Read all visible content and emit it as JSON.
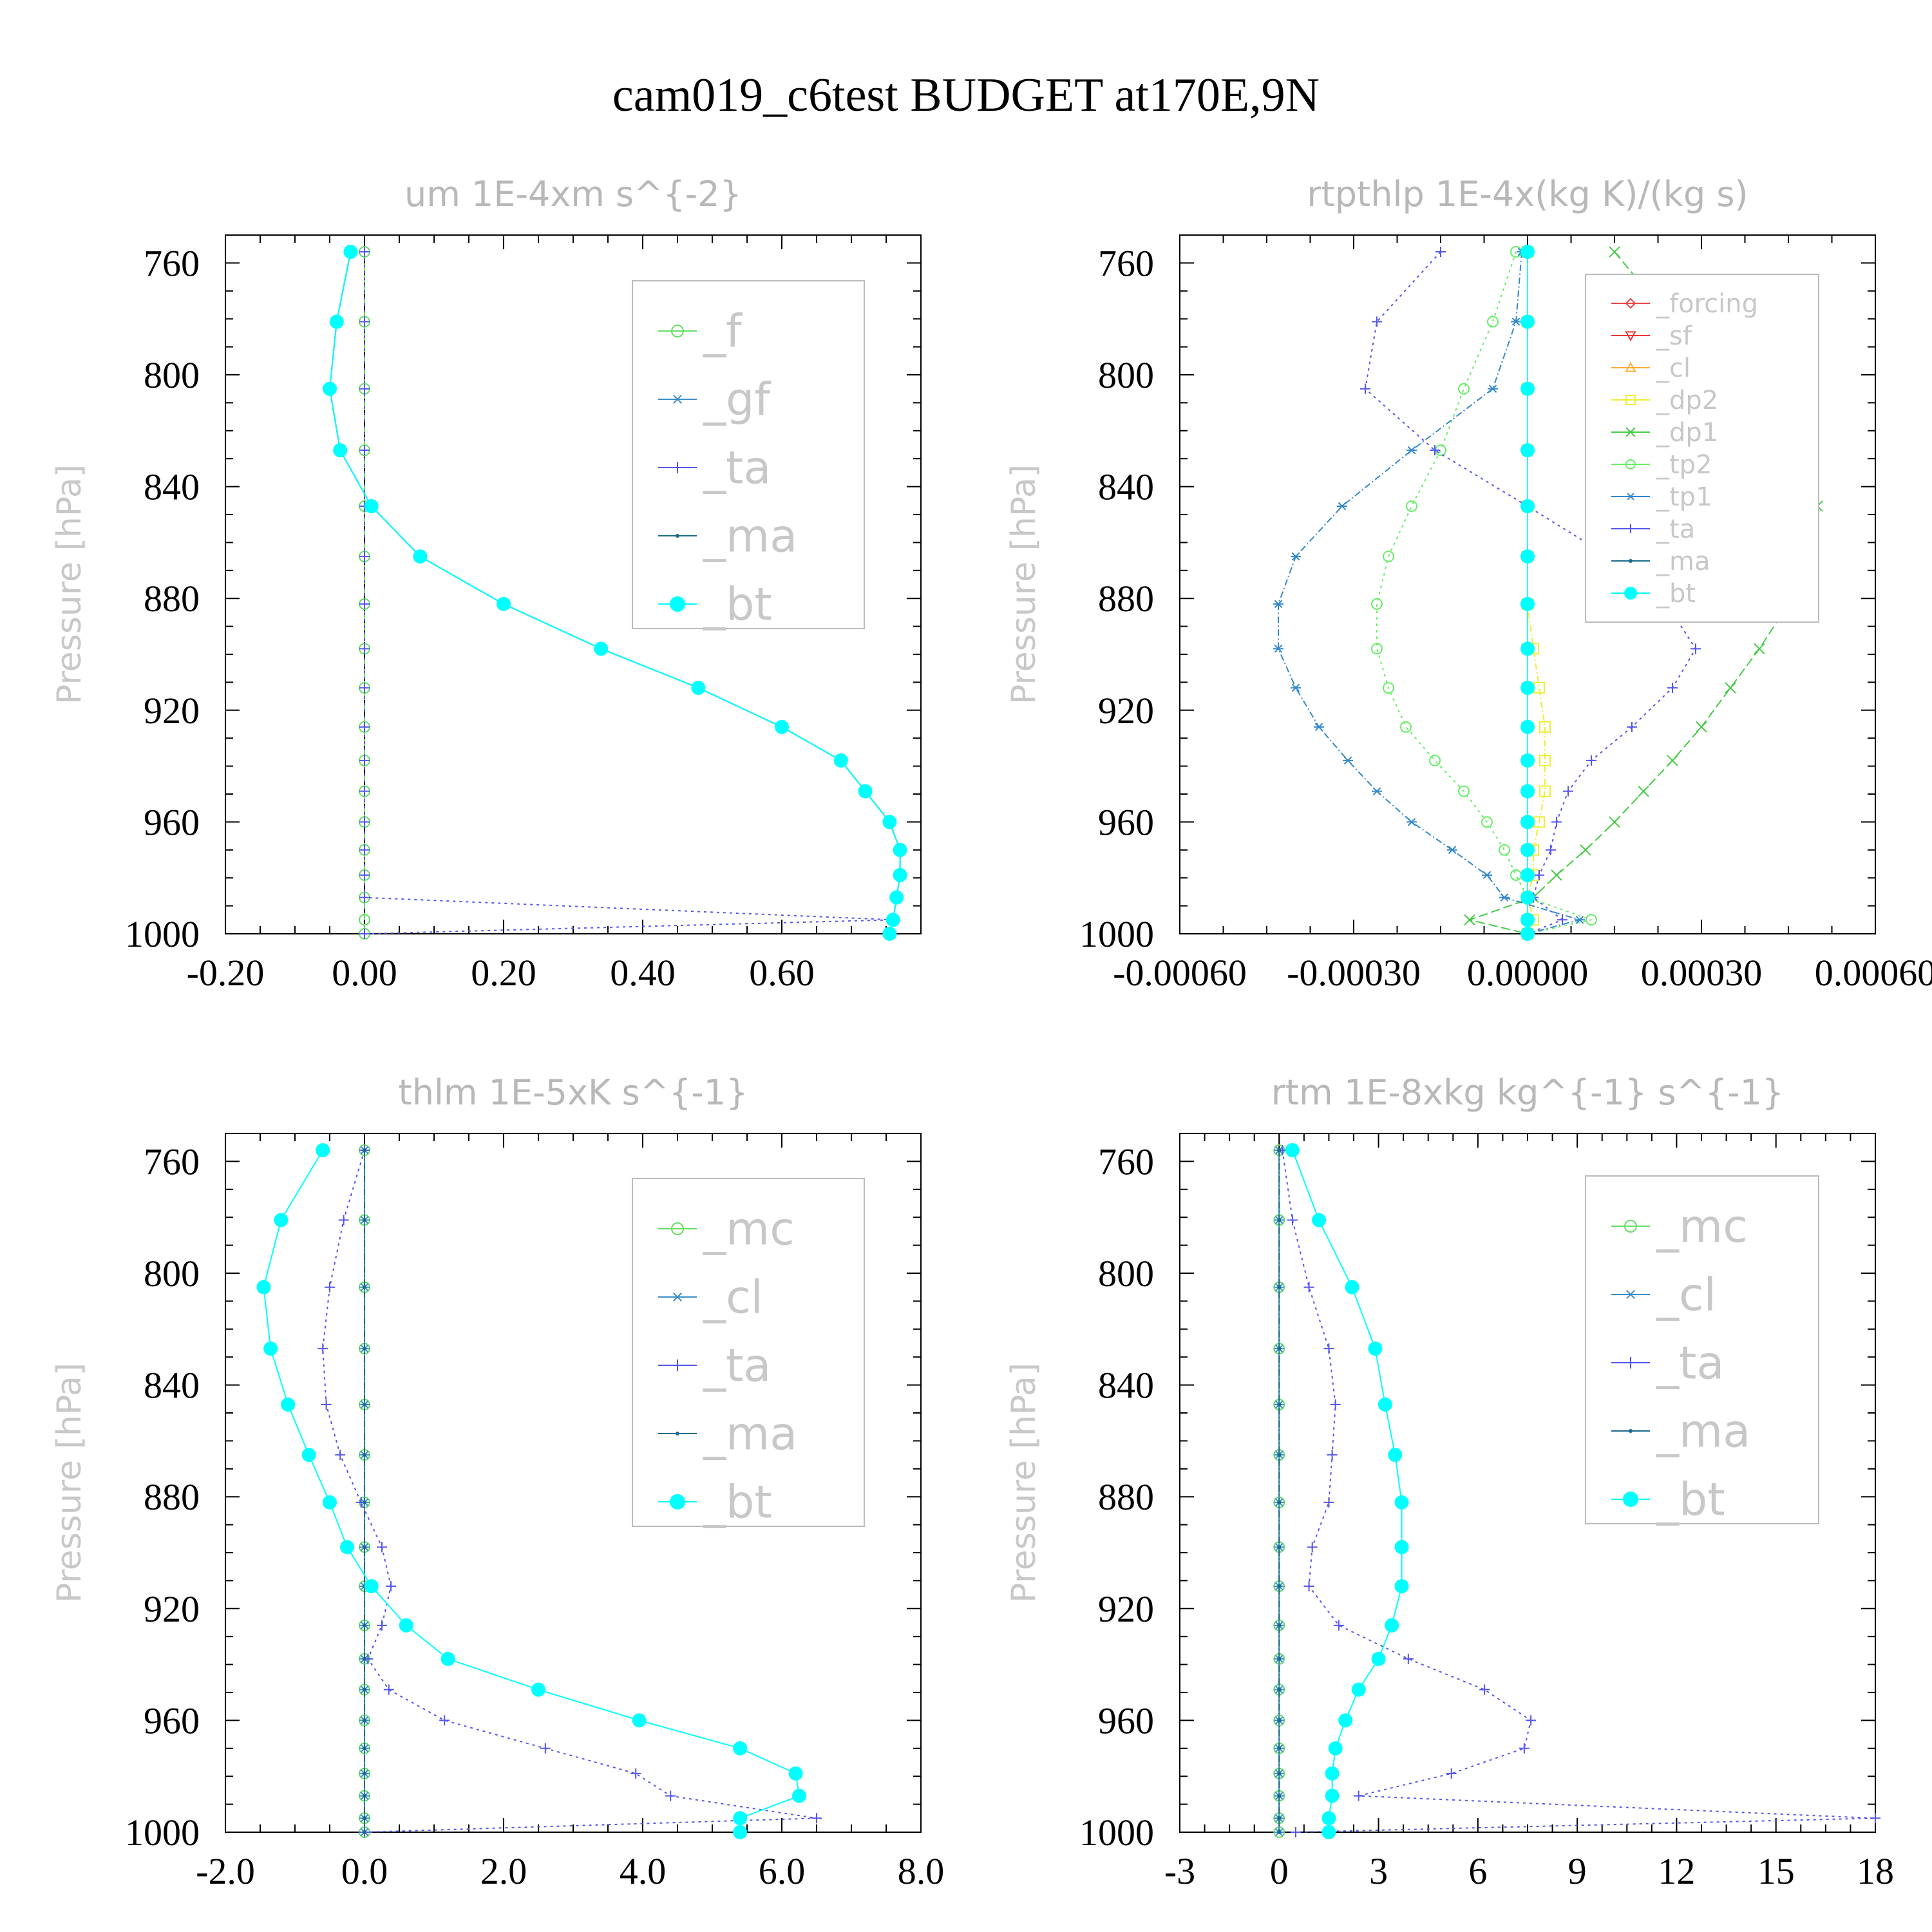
{
  "figure": {
    "title": "cam019_c6test  BUDGET at170E,9N"
  },
  "colors": {
    "f": "#66dd66",
    "gf": "#3a8fc8",
    "ta": "#5555ee",
    "ma": "#1a6a8a",
    "bt": "#00ffff",
    "forcing": "#ee4444",
    "sf": "#ee3333",
    "cl_rt": "#ffaa33",
    "dp2": "#eeee33",
    "dp1": "#44cc44",
    "tp2": "#66ee66",
    "tp1": "#3388cc",
    "mc": "#66dd66",
    "cl": "#3a8fc8"
  },
  "chart_data": [
    {
      "id": "um",
      "type": "line",
      "title": "um   1E-4xm s^{-2}",
      "ylabel": "Pressure [hPa]",
      "xlim": [
        -0.2,
        0.8
      ],
      "ylim": [
        1000,
        750
      ],
      "xticks": [
        "-0.20",
        "0.00",
        "0.20",
        "0.40",
        "0.60"
      ],
      "xtick_values": [
        -0.2,
        0.0,
        0.2,
        0.4,
        0.6
      ],
      "yticks": [
        "760",
        "800",
        "840",
        "880",
        "920",
        "960",
        "1000"
      ],
      "legend": [
        "_f",
        "_gf",
        "_ta",
        "_ma",
        "_bt"
      ],
      "p": [
        756,
        781,
        805,
        827,
        847,
        865,
        882,
        898,
        912,
        926,
        938,
        949,
        960,
        970,
        979,
        987,
        995,
        1000
      ],
      "series": [
        {
          "name": "_f",
          "color_key": "f",
          "dash": "12,6",
          "marker": "circle",
          "values": [
            0,
            0,
            0,
            0,
            0,
            0,
            0,
            0,
            0,
            0,
            0,
            0,
            0,
            0,
            0,
            0,
            0,
            0
          ]
        },
        {
          "name": "_gf",
          "color_key": "gf",
          "dash": "",
          "marker": "star",
          "values": [
            -0.02,
            -0.04,
            -0.05,
            -0.035,
            0.01,
            0.08,
            0.2,
            0.34,
            0.48,
            0.6,
            0.685,
            0.72,
            0.755,
            0.77,
            0.77,
            0.765,
            0.76,
            0.755
          ]
        },
        {
          "name": "_ta",
          "color_key": "ta",
          "dash": "4,6",
          "marker": "plus",
          "values": [
            0,
            0,
            0,
            0,
            0,
            0,
            0,
            0,
            0,
            0,
            0,
            0,
            0,
            0,
            0,
            0,
            0.76,
            0
          ]
        },
        {
          "name": "_ma",
          "color_key": "ma",
          "dash": "10,4,2,4",
          "marker": "dot",
          "values": [
            -0.02,
            -0.04,
            -0.05,
            -0.035,
            0.01,
            0.08,
            0.2,
            0.34,
            0.48,
            0.6,
            0.685,
            0.72,
            0.755,
            0.77,
            0.77,
            0.765,
            0.76,
            0.755
          ]
        },
        {
          "name": "_bt",
          "color_key": "bt",
          "dash": "",
          "marker": "filled",
          "values": [
            -0.02,
            -0.04,
            -0.05,
            -0.035,
            0.01,
            0.08,
            0.2,
            0.34,
            0.48,
            0.6,
            0.685,
            0.72,
            0.755,
            0.77,
            0.77,
            0.765,
            0.76,
            0.755
          ]
        }
      ]
    },
    {
      "id": "rtpthlp",
      "type": "line",
      "title": "rtpthlp   1E-4x(kg K)/(kg s)",
      "ylabel": "Pressure [hPa]",
      "xlim": [
        -0.0006,
        0.0006
      ],
      "ylim": [
        1000,
        750
      ],
      "xticks": [
        "-0.00060",
        "-0.00030",
        "0.00000",
        "0.00030",
        "0.00060"
      ],
      "xtick_values": [
        -0.0006,
        -0.0003,
        0.0,
        0.0003,
        0.0006
      ],
      "yticks": [
        "760",
        "800",
        "840",
        "880",
        "920",
        "960",
        "1000"
      ],
      "legend": [
        "_forcing",
        "_sf",
        "_cl",
        "_dp2",
        "_dp1",
        "_tp2",
        "_tp1",
        "_ta",
        "_ma",
        "_bt"
      ],
      "p": [
        756,
        781,
        805,
        827,
        847,
        865,
        882,
        898,
        912,
        926,
        938,
        949,
        960,
        970,
        979,
        987,
        995,
        1000
      ],
      "series": [
        {
          "name": "_forcing",
          "color_key": "forcing",
          "dash": "",
          "marker": "diamond",
          "values": [
            0,
            0,
            0,
            0,
            0,
            0,
            0,
            0,
            0,
            0,
            0,
            0,
            0,
            0,
            0,
            0,
            0,
            0
          ]
        },
        {
          "name": "_sf",
          "color_key": "sf",
          "dash": "10,5",
          "marker": "tri-down",
          "values": [
            0,
            0,
            0,
            0,
            0,
            0,
            0,
            0,
            0,
            0,
            0,
            0,
            0,
            0,
            0,
            0,
            0,
            0
          ]
        },
        {
          "name": "_cl",
          "color_key": "cl_rt",
          "dash": "3,5",
          "marker": "tri-up",
          "values": [
            0,
            0,
            0,
            0,
            0,
            0,
            0,
            0,
            0,
            0,
            0,
            0,
            0,
            0,
            0,
            0,
            0,
            0
          ]
        },
        {
          "name": "_dp2",
          "color_key": "dp2",
          "dash": "10,4,2,4",
          "marker": "square",
          "values": [
            0,
            0,
            0,
            0,
            0,
            0,
            0,
            1e-05,
            2e-05,
            3e-05,
            3e-05,
            3e-05,
            2e-05,
            1e-05,
            1e-05,
            0,
            1e-05,
            0
          ]
        },
        {
          "name": "_dp1",
          "color_key": "dp1",
          "dash": "14,6",
          "marker": "x",
          "values": [
            0.00015,
            0.00025,
            0.0004,
            0.00048,
            0.0005,
            0.00048,
            0.00045,
            0.0004,
            0.00035,
            0.0003,
            0.00025,
            0.0002,
            0.00015,
            0.0001,
            5e-05,
            1e-05,
            -0.0001,
            0
          ]
        },
        {
          "name": "_tp2",
          "color_key": "tp2",
          "dash": "4,6",
          "marker": "circle",
          "values": [
            -2e-05,
            -6e-05,
            -0.00011,
            -0.00015,
            -0.0002,
            -0.00024,
            -0.00026,
            -0.00026,
            -0.00024,
            -0.00021,
            -0.00016,
            -0.00011,
            -7e-05,
            -4e-05,
            -2e-05,
            0,
            0.00011,
            0
          ]
        },
        {
          "name": "_tp1",
          "color_key": "tp1",
          "dash": "10,4,2,4",
          "marker": "star",
          "values": [
            -1e-05,
            -2e-05,
            -6e-05,
            -0.0002,
            -0.00032,
            -0.0004,
            -0.00043,
            -0.00043,
            -0.0004,
            -0.00036,
            -0.00031,
            -0.00026,
            -0.0002,
            -0.00013,
            -7e-05,
            -4e-05,
            9e-05,
            0
          ]
        },
        {
          "name": "_ta",
          "color_key": "ta",
          "dash": "4,6",
          "marker": "plus",
          "values": [
            -0.00015,
            -0.00026,
            -0.00028,
            -0.00016,
            0,
            0.00014,
            0.00024,
            0.00029,
            0.00025,
            0.00018,
            0.00011,
            7e-05,
            5e-05,
            4e-05,
            2e-05,
            1e-05,
            6e-05,
            0
          ]
        },
        {
          "name": "_ma",
          "color_key": "ma",
          "dash": "10,4,2,4",
          "marker": "dot",
          "values": [
            0,
            0,
            0,
            0,
            0,
            0,
            0,
            0,
            0,
            0,
            0,
            0,
            0,
            0,
            0,
            0,
            0,
            0
          ]
        },
        {
          "name": "_bt",
          "color_key": "bt",
          "dash": "",
          "marker": "filled",
          "values": [
            0,
            0,
            0,
            0,
            0,
            0,
            0,
            0,
            0,
            0,
            0,
            0,
            0,
            0,
            0,
            0,
            0,
            0
          ]
        }
      ]
    },
    {
      "id": "thlm",
      "type": "line",
      "title": "thlm   1E-5xK s^{-1}",
      "ylabel": "Pressure [hPa]",
      "xlim": [
        -2.0,
        8.0
      ],
      "ylim": [
        1000,
        750
      ],
      "xticks": [
        "-2.0",
        "0.0",
        "2.0",
        "4.0",
        "6.0",
        "8.0"
      ],
      "xtick_values": [
        -2.0,
        0.0,
        2.0,
        4.0,
        6.0,
        8.0
      ],
      "yticks": [
        "760",
        "800",
        "840",
        "880",
        "920",
        "960",
        "1000"
      ],
      "legend": [
        "_mc",
        "_cl",
        "_ta",
        "_ma",
        "_bt"
      ],
      "p": [
        756,
        781,
        805,
        827,
        847,
        865,
        882,
        898,
        912,
        926,
        938,
        949,
        960,
        970,
        979,
        987,
        995,
        1000
      ],
      "series": [
        {
          "name": "_mc",
          "color_key": "mc",
          "dash": "12,6",
          "marker": "circle",
          "values": [
            0,
            0,
            0,
            0,
            0,
            0,
            0,
            0,
            0,
            0,
            0,
            0,
            0,
            0,
            0,
            0,
            0,
            0
          ]
        },
        {
          "name": "_cl",
          "color_key": "cl",
          "dash": "",
          "marker": "star",
          "values": [
            0,
            0,
            0,
            0,
            0,
            0,
            0,
            0,
            0,
            0,
            0,
            0,
            0,
            0,
            0,
            0,
            0,
            0
          ]
        },
        {
          "name": "_ta",
          "color_key": "ta",
          "dash": "4,6",
          "marker": "plus",
          "values": [
            0,
            -0.3,
            -0.5,
            -0.6,
            -0.55,
            -0.35,
            -0.05,
            0.25,
            0.38,
            0.25,
            0.05,
            0.35,
            1.15,
            2.6,
            3.9,
            4.4,
            6.5,
            0
          ]
        },
        {
          "name": "_ma",
          "color_key": "ma",
          "dash": "10,4,2,4",
          "marker": "dot",
          "values": [
            0,
            0,
            0,
            0,
            0,
            0,
            0,
            0,
            0,
            0,
            0,
            0,
            0,
            0,
            0,
            0,
            0,
            0
          ]
        },
        {
          "name": "_bt",
          "color_key": "bt",
          "dash": "",
          "marker": "filled",
          "values": [
            -0.6,
            -1.2,
            -1.45,
            -1.35,
            -1.1,
            -0.8,
            -0.5,
            -0.25,
            0.1,
            0.6,
            1.2,
            2.5,
            3.95,
            5.4,
            6.2,
            6.25,
            5.4,
            5.4
          ]
        }
      ]
    },
    {
      "id": "rtm",
      "type": "line",
      "title": "rtm   1E-8xkg kg^{-1} s^{-1}",
      "ylabel": "Pressure [hPa]",
      "xlim": [
        -3,
        18
      ],
      "ylim": [
        1000,
        750
      ],
      "xticks": [
        "-3",
        "0",
        "3",
        "6",
        "9",
        "12",
        "15",
        "18"
      ],
      "xtick_values": [
        -3,
        0,
        3,
        6,
        9,
        12,
        15,
        18
      ],
      "yticks": [
        "760",
        "800",
        "840",
        "880",
        "920",
        "960",
        "1000"
      ],
      "legend": [
        "_mc",
        "_cl",
        "_ta",
        "_ma",
        "_bt"
      ],
      "p": [
        756,
        781,
        805,
        827,
        847,
        865,
        882,
        898,
        912,
        926,
        938,
        949,
        960,
        970,
        979,
        987,
        995,
        1000
      ],
      "series": [
        {
          "name": "_mc",
          "color_key": "mc",
          "dash": "12,6",
          "marker": "circle",
          "values": [
            0,
            0,
            0,
            0,
            0,
            0,
            0,
            0,
            0,
            0,
            0,
            0,
            0,
            0,
            0,
            0,
            0,
            0
          ]
        },
        {
          "name": "_cl",
          "color_key": "cl",
          "dash": "",
          "marker": "star",
          "values": [
            0,
            0,
            0,
            0,
            0,
            0,
            0,
            0,
            0,
            0,
            0,
            0,
            0,
            0,
            0,
            0,
            0,
            0
          ]
        },
        {
          "name": "_ta",
          "color_key": "ta",
          "dash": "4,6",
          "marker": "plus",
          "values": [
            0.1,
            0.4,
            0.9,
            1.5,
            1.7,
            1.6,
            1.5,
            1.0,
            0.9,
            1.8,
            3.9,
            6.2,
            7.6,
            7.4,
            5.2,
            2.4,
            18,
            0.5
          ]
        },
        {
          "name": "_ma",
          "color_key": "ma",
          "dash": "10,4,2,4",
          "marker": "dot",
          "values": [
            0,
            0,
            0,
            0,
            0,
            0,
            0,
            0,
            0,
            0,
            0,
            0,
            0,
            0,
            0,
            0,
            0,
            0
          ]
        },
        {
          "name": "_bt",
          "color_key": "bt",
          "dash": "",
          "marker": "filled",
          "values": [
            0.4,
            1.2,
            2.2,
            2.9,
            3.2,
            3.5,
            3.7,
            3.7,
            3.7,
            3.4,
            3.0,
            2.4,
            2.0,
            1.7,
            1.6,
            1.6,
            1.5,
            1.5
          ]
        }
      ]
    }
  ]
}
